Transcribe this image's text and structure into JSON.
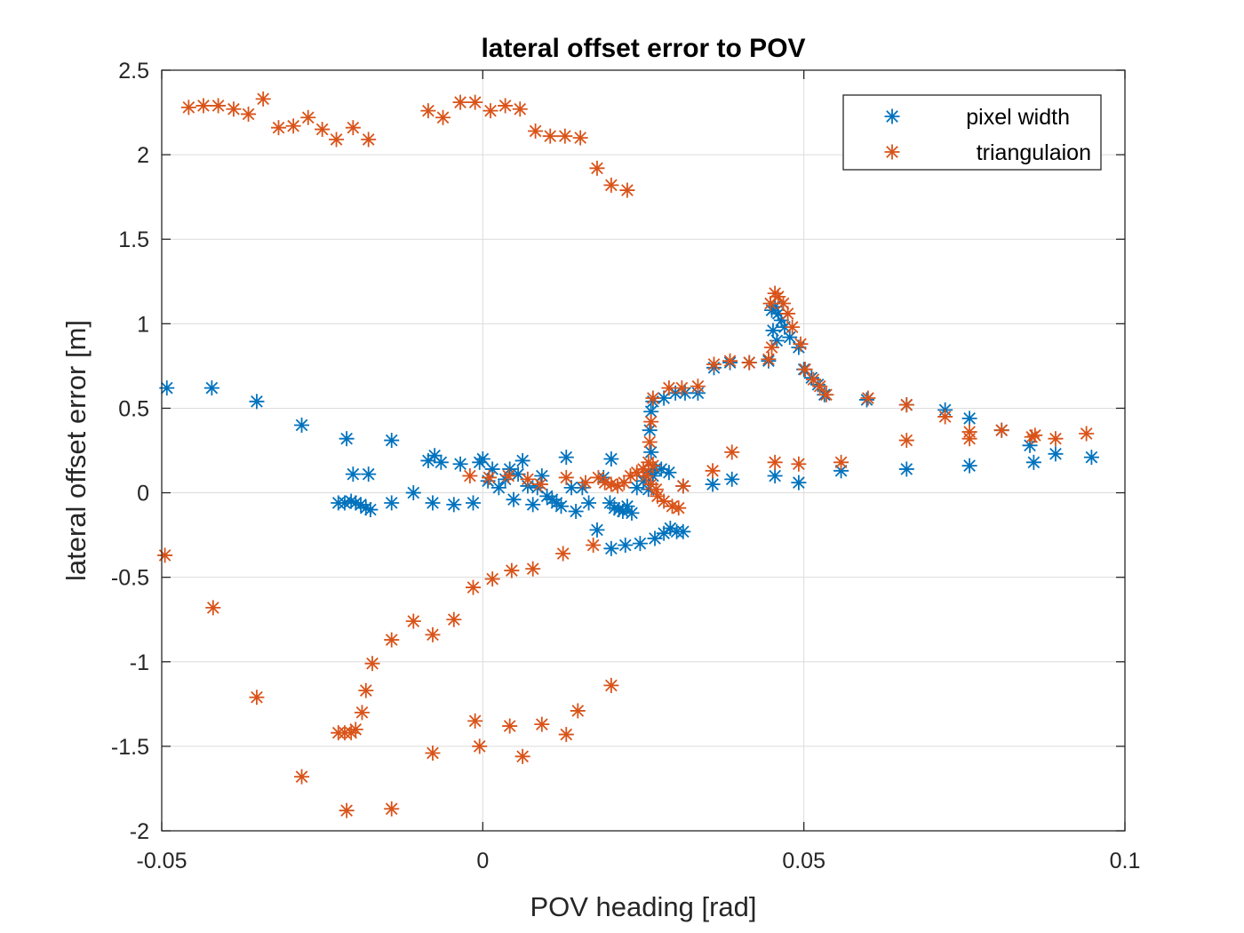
{
  "chart_data": {
    "type": "scatter",
    "title": "lateral offset error to POV",
    "xlabel": "POV heading [rad]",
    "ylabel": "lateral offset error [m]",
    "xlim": [
      -0.05,
      0.1
    ],
    "ylim": [
      -2,
      2.5
    ],
    "xticks": [
      -0.05,
      0,
      0.05,
      0.1
    ],
    "xtick_labels": [
      "-0.05",
      "0",
      "0.05",
      "0.1"
    ],
    "yticks": [
      -2,
      -1.5,
      -1,
      -0.5,
      0,
      0.5,
      1,
      1.5,
      2,
      2.5
    ],
    "ytick_labels": [
      "-2",
      "-1.5",
      "-1",
      "-0.5",
      "0",
      "0.5",
      "1",
      "1.5",
      "2",
      "2.5"
    ],
    "grid": true,
    "legend_position": "top-right",
    "marker": "asterisk",
    "series": [
      {
        "name": "pixel width",
        "color": "#0072BD",
        "points": [
          [
            -0.0492,
            0.62
          ],
          [
            -0.0422,
            0.62
          ],
          [
            -0.0352,
            0.54
          ],
          [
            -0.0282,
            0.4
          ],
          [
            -0.0212,
            0.32
          ],
          [
            -0.0142,
            0.31
          ],
          [
            -0.0202,
            0.11
          ],
          [
            -0.0178,
            0.11
          ],
          [
            -0.0225,
            -0.06
          ],
          [
            -0.0215,
            -0.06
          ],
          [
            -0.0205,
            -0.05
          ],
          [
            -0.0198,
            -0.06
          ],
          [
            -0.019,
            -0.07
          ],
          [
            -0.0182,
            -0.09
          ],
          [
            -0.0175,
            -0.1
          ],
          [
            -0.0142,
            -0.06
          ],
          [
            -0.0108,
            0.0
          ],
          [
            -0.0078,
            -0.06
          ],
          [
            -0.0045,
            -0.07
          ],
          [
            -0.0015,
            -0.06
          ],
          [
            -0.0085,
            0.19
          ],
          [
            -0.0075,
            0.22
          ],
          [
            -0.0065,
            0.18
          ],
          [
            -0.0035,
            0.17
          ],
          [
            -0.0005,
            0.18
          ],
          [
            0.0,
            0.2
          ],
          [
            0.0008,
            0.07
          ],
          [
            0.0015,
            0.14
          ],
          [
            0.0025,
            0.03
          ],
          [
            0.0035,
            0.08
          ],
          [
            0.0042,
            0.14
          ],
          [
            0.0048,
            -0.04
          ],
          [
            0.0055,
            0.11
          ],
          [
            0.0062,
            0.19
          ],
          [
            0.007,
            0.04
          ],
          [
            0.0078,
            -0.07
          ],
          [
            0.0085,
            0.03
          ],
          [
            0.0092,
            0.1
          ],
          [
            0.01,
            -0.02
          ],
          [
            0.0108,
            -0.04
          ],
          [
            0.0115,
            -0.06
          ],
          [
            0.0122,
            -0.08
          ],
          [
            0.013,
            0.21
          ],
          [
            0.0138,
            0.03
          ],
          [
            0.0145,
            -0.11
          ],
          [
            0.0155,
            0.03
          ],
          [
            0.0165,
            -0.06
          ],
          [
            0.0178,
            -0.22
          ],
          [
            0.0188,
            0.09
          ],
          [
            0.0198,
            -0.06
          ],
          [
            0.02,
            0.2
          ],
          [
            0.0205,
            -0.09
          ],
          [
            0.0212,
            -0.1
          ],
          [
            0.0218,
            -0.11
          ],
          [
            0.0225,
            -0.08
          ],
          [
            0.0232,
            -0.12
          ],
          [
            0.02,
            -0.33
          ],
          [
            0.0222,
            -0.31
          ],
          [
            0.0245,
            -0.3
          ],
          [
            0.0268,
            -0.27
          ],
          [
            0.0282,
            -0.24
          ],
          [
            0.0292,
            -0.21
          ],
          [
            0.0302,
            -0.23
          ],
          [
            0.0312,
            -0.23
          ],
          [
            0.024,
            0.03
          ],
          [
            0.025,
            0.07
          ],
          [
            0.0258,
            0.02
          ],
          [
            0.0265,
            0.1
          ],
          [
            0.0262,
            0.24
          ],
          [
            0.026,
            0.37
          ],
          [
            0.0262,
            0.48
          ],
          [
            0.0265,
            0.54
          ],
          [
            0.0258,
            0.12
          ],
          [
            0.0268,
            0.14
          ],
          [
            0.0278,
            0.14
          ],
          [
            0.029,
            0.12
          ],
          [
            0.0312,
            0.04
          ],
          [
            0.0282,
            0.56
          ],
          [
            0.03,
            0.59
          ],
          [
            0.0315,
            0.59
          ],
          [
            0.0335,
            0.59
          ],
          [
            0.036,
            0.74
          ],
          [
            0.0385,
            0.77
          ],
          [
            0.0415,
            0.77
          ],
          [
            0.0445,
            0.78
          ],
          [
            0.045,
            1.08
          ],
          [
            0.0455,
            1.1
          ],
          [
            0.046,
            1.06
          ],
          [
            0.0465,
            1.02
          ],
          [
            0.047,
            0.98
          ],
          [
            0.0452,
            0.96
          ],
          [
            0.0458,
            0.9
          ],
          [
            0.0478,
            0.92
          ],
          [
            0.0492,
            0.86
          ],
          [
            0.05,
            0.73
          ],
          [
            0.0512,
            0.68
          ],
          [
            0.0522,
            0.64
          ],
          [
            0.0532,
            0.58
          ],
          [
            0.0598,
            0.55
          ],
          [
            0.066,
            0.52
          ],
          [
            0.072,
            0.49
          ],
          [
            0.0758,
            0.44
          ],
          [
            0.0808,
            0.37
          ],
          [
            0.0852,
            0.28
          ],
          [
            0.0358,
            0.05
          ],
          [
            0.0388,
            0.08
          ],
          [
            0.0455,
            0.1
          ],
          [
            0.0492,
            0.06
          ],
          [
            0.0558,
            0.13
          ],
          [
            0.066,
            0.14
          ],
          [
            0.0758,
            0.16
          ],
          [
            0.0858,
            0.18
          ],
          [
            0.0892,
            0.23
          ],
          [
            0.0948,
            0.21
          ]
        ]
      },
      {
        "name": "triangulaion",
        "color": "#D95319",
        "points": [
          [
            -0.0458,
            2.28
          ],
          [
            -0.0435,
            2.29
          ],
          [
            -0.0412,
            2.29
          ],
          [
            -0.0388,
            2.27
          ],
          [
            -0.0365,
            2.24
          ],
          [
            -0.0342,
            2.33
          ],
          [
            -0.0318,
            2.16
          ],
          [
            -0.0295,
            2.17
          ],
          [
            -0.0272,
            2.22
          ],
          [
            -0.025,
            2.15
          ],
          [
            -0.0228,
            2.09
          ],
          [
            -0.0202,
            2.16
          ],
          [
            -0.0178,
            2.09
          ],
          [
            -0.0085,
            2.26
          ],
          [
            -0.0062,
            2.22
          ],
          [
            -0.0035,
            2.31
          ],
          [
            -0.0012,
            2.31
          ],
          [
            0.0012,
            2.26
          ],
          [
            0.0035,
            2.29
          ],
          [
            0.0058,
            2.27
          ],
          [
            0.0082,
            2.14
          ],
          [
            0.0105,
            2.11
          ],
          [
            0.0128,
            2.11
          ],
          [
            0.0152,
            2.1
          ],
          [
            0.0178,
            1.92
          ],
          [
            0.02,
            1.82
          ],
          [
            0.0225,
            1.79
          ],
          [
            -0.0495,
            -0.37
          ],
          [
            -0.042,
            -0.68
          ],
          [
            -0.0352,
            -1.21
          ],
          [
            -0.0282,
            -1.68
          ],
          [
            -0.0225,
            -1.42
          ],
          [
            -0.0215,
            -1.42
          ],
          [
            -0.0205,
            -1.42
          ],
          [
            -0.0198,
            -1.4
          ],
          [
            -0.0188,
            -1.3
          ],
          [
            -0.0182,
            -1.17
          ],
          [
            -0.0172,
            -1.01
          ],
          [
            -0.0142,
            -0.87
          ],
          [
            -0.0108,
            -0.76
          ],
          [
            -0.0078,
            -0.84
          ],
          [
            -0.0045,
            -0.75
          ],
          [
            -0.0015,
            -0.56
          ],
          [
            0.0015,
            -0.51
          ],
          [
            0.0045,
            -0.46
          ],
          [
            0.0078,
            -0.45
          ],
          [
            0.0125,
            -0.36
          ],
          [
            0.0172,
            -0.31
          ],
          [
            -0.0212,
            -1.88
          ],
          [
            -0.0142,
            -1.87
          ],
          [
            -0.0078,
            -1.54
          ],
          [
            -0.0005,
            -1.5
          ],
          [
            -0.0012,
            -1.35
          ],
          [
            0.0042,
            -1.38
          ],
          [
            0.0062,
            -1.56
          ],
          [
            0.0092,
            -1.37
          ],
          [
            0.013,
            -1.43
          ],
          [
            0.0148,
            -1.29
          ],
          [
            0.02,
            -1.14
          ],
          [
            -0.002,
            0.1
          ],
          [
            0.001,
            0.09
          ],
          [
            0.004,
            0.1
          ],
          [
            0.007,
            0.08
          ],
          [
            0.009,
            0.05
          ],
          [
            0.013,
            0.09
          ],
          [
            0.016,
            0.06
          ],
          [
            0.018,
            0.09
          ],
          [
            0.019,
            0.06
          ],
          [
            0.02,
            0.05
          ],
          [
            0.021,
            0.04
          ],
          [
            0.022,
            0.06
          ],
          [
            0.023,
            0.1
          ],
          [
            0.024,
            0.12
          ],
          [
            0.025,
            0.14
          ],
          [
            0.0258,
            0.18
          ],
          [
            0.0265,
            0.16
          ],
          [
            0.0255,
            0.1
          ],
          [
            0.0262,
            0.05
          ],
          [
            0.0272,
            -0.02
          ],
          [
            0.0282,
            -0.05
          ],
          [
            0.0295,
            -0.08
          ],
          [
            0.0305,
            -0.09
          ],
          [
            0.027,
            0.02
          ],
          [
            0.026,
            0.3
          ],
          [
            0.0262,
            0.42
          ],
          [
            0.0265,
            0.56
          ],
          [
            0.029,
            0.62
          ],
          [
            0.031,
            0.62
          ],
          [
            0.0335,
            0.63
          ],
          [
            0.036,
            0.76
          ],
          [
            0.0385,
            0.78
          ],
          [
            0.0415,
            0.77
          ],
          [
            0.0445,
            0.79
          ],
          [
            0.045,
            0.86
          ],
          [
            0.0448,
            1.12
          ],
          [
            0.0455,
            1.18
          ],
          [
            0.046,
            1.16
          ],
          [
            0.0468,
            1.12
          ],
          [
            0.0475,
            1.06
          ],
          [
            0.0482,
            0.98
          ],
          [
            0.0495,
            0.88
          ],
          [
            0.0502,
            0.73
          ],
          [
            0.0515,
            0.67
          ],
          [
            0.0525,
            0.63
          ],
          [
            0.0535,
            0.58
          ],
          [
            0.06,
            0.56
          ],
          [
            0.066,
            0.52
          ],
          [
            0.072,
            0.45
          ],
          [
            0.0758,
            0.36
          ],
          [
            0.0808,
            0.37
          ],
          [
            0.086,
            0.34
          ],
          [
            0.0892,
            0.32
          ],
          [
            0.094,
            0.35
          ],
          [
            0.066,
            0.31
          ],
          [
            0.0758,
            0.32
          ],
          [
            0.0855,
            0.33
          ],
          [
            0.0388,
            0.24
          ],
          [
            0.0455,
            0.18
          ],
          [
            0.0492,
            0.17
          ],
          [
            0.0558,
            0.18
          ],
          [
            0.0358,
            0.13
          ],
          [
            0.0312,
            0.04
          ]
        ]
      }
    ]
  }
}
